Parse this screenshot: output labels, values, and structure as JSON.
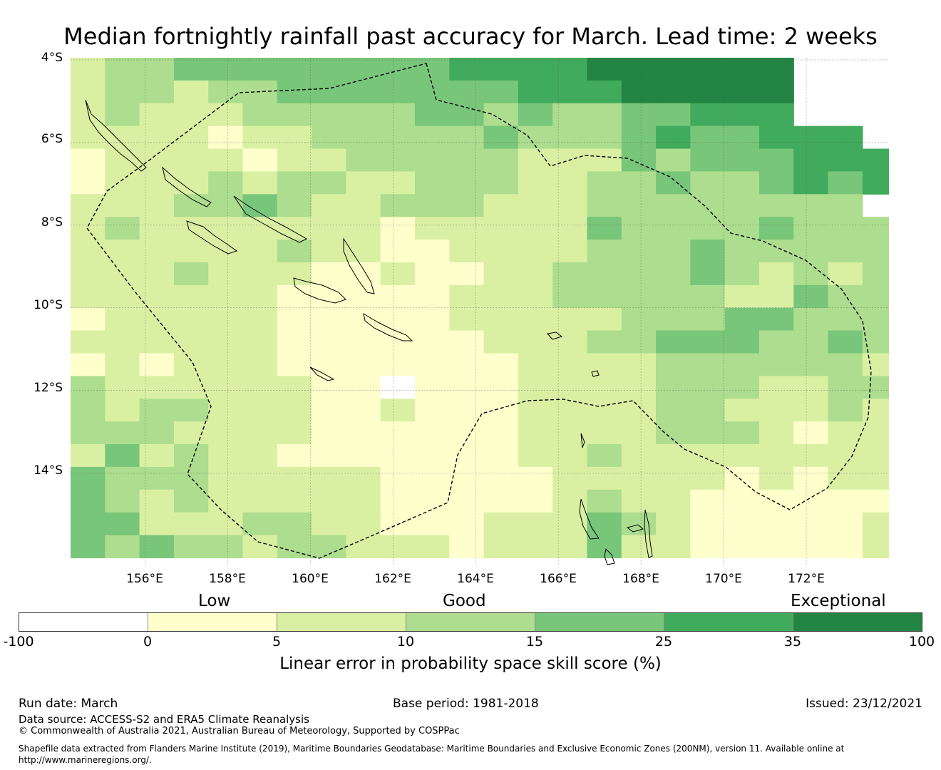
{
  "title": "Median fortnightly rainfall past accuracy for March. Lead time: 2 weeks",
  "map": {
    "lat_labels": [
      "4°S",
      "6°S",
      "8°S",
      "10°S",
      "12°S",
      "14°S"
    ],
    "lon_labels": [
      "156°E",
      "158°E",
      "160°E",
      "162°E",
      "164°E",
      "166°E",
      "168°E",
      "170°E",
      "172°E"
    ],
    "extent": {
      "lon_min": 154.2,
      "lon_max": 174.0,
      "lat_min": -16.25,
      "lat_max": -3.95
    },
    "grid": {
      "lon0": 154.2,
      "lat0": -3.95,
      "dlon": 0.833,
      "dlat": -0.55
    },
    "category_rows": [
      "233444444445555666666",
      "233233444444455566666",
      "232223333344343344555",
      "22221223333343334544555",
      "122221223333322243444555",
      "122232332233322334334545",
      "22233432233322233333333",
      "232222222122222433334333",
      "222222322112222333433333",
      "222322211211223333432323",
      "222222111112223333322433",
      "122222111112222233344333",
      "222222111111222334443343",
      "121222111111122223333332",
      "322222211011122223332233",
      "323322211211122223322232",
      "333222211111122223332122",
      "242322111111122322222222",
      "433322222111112222212122",
      "432322222111112322111111",
      "442223322111222432111112",
      "434332332221222422111112"
    ],
    "palette": [
      "#ffffff",
      "#ffffcc",
      "#d9f0a3",
      "#addd8e",
      "#78c679",
      "#41ab5d",
      "#238443"
    ]
  },
  "colorbar": {
    "category_labels": [
      "Low",
      "Good",
      "Exceptional"
    ],
    "ticks": [
      "-100",
      "0",
      "5",
      "10",
      "15",
      "25",
      "35",
      "100"
    ],
    "colors": [
      "#ffffff",
      "#ffffcc",
      "#d9f0a3",
      "#addd8e",
      "#78c679",
      "#41ab5d",
      "#238443"
    ],
    "caption": "Linear error in probability space skill score (%)"
  },
  "footer": {
    "run_date": "Run date: March",
    "base_period": "Base period: 1981-2018",
    "issued": "Issued: 23/12/2021",
    "data_source": "Data source: ACCESS-S2 and ERA5 Climate Reanalysis",
    "copyright": "© Commonwealth of Australia 2021, Australian Bureau of Meteorology, Supported by COSPPac",
    "shapefile_line1": "Shapefile data extracted from Flanders Marine Institute (2019), Maritime Boundaries Geodatabase: Maritime Boundaries and Exclusive Economic Zones (200NM), version 11. Available online at",
    "shapefile_line2": "http://www.marineregions.org/."
  }
}
